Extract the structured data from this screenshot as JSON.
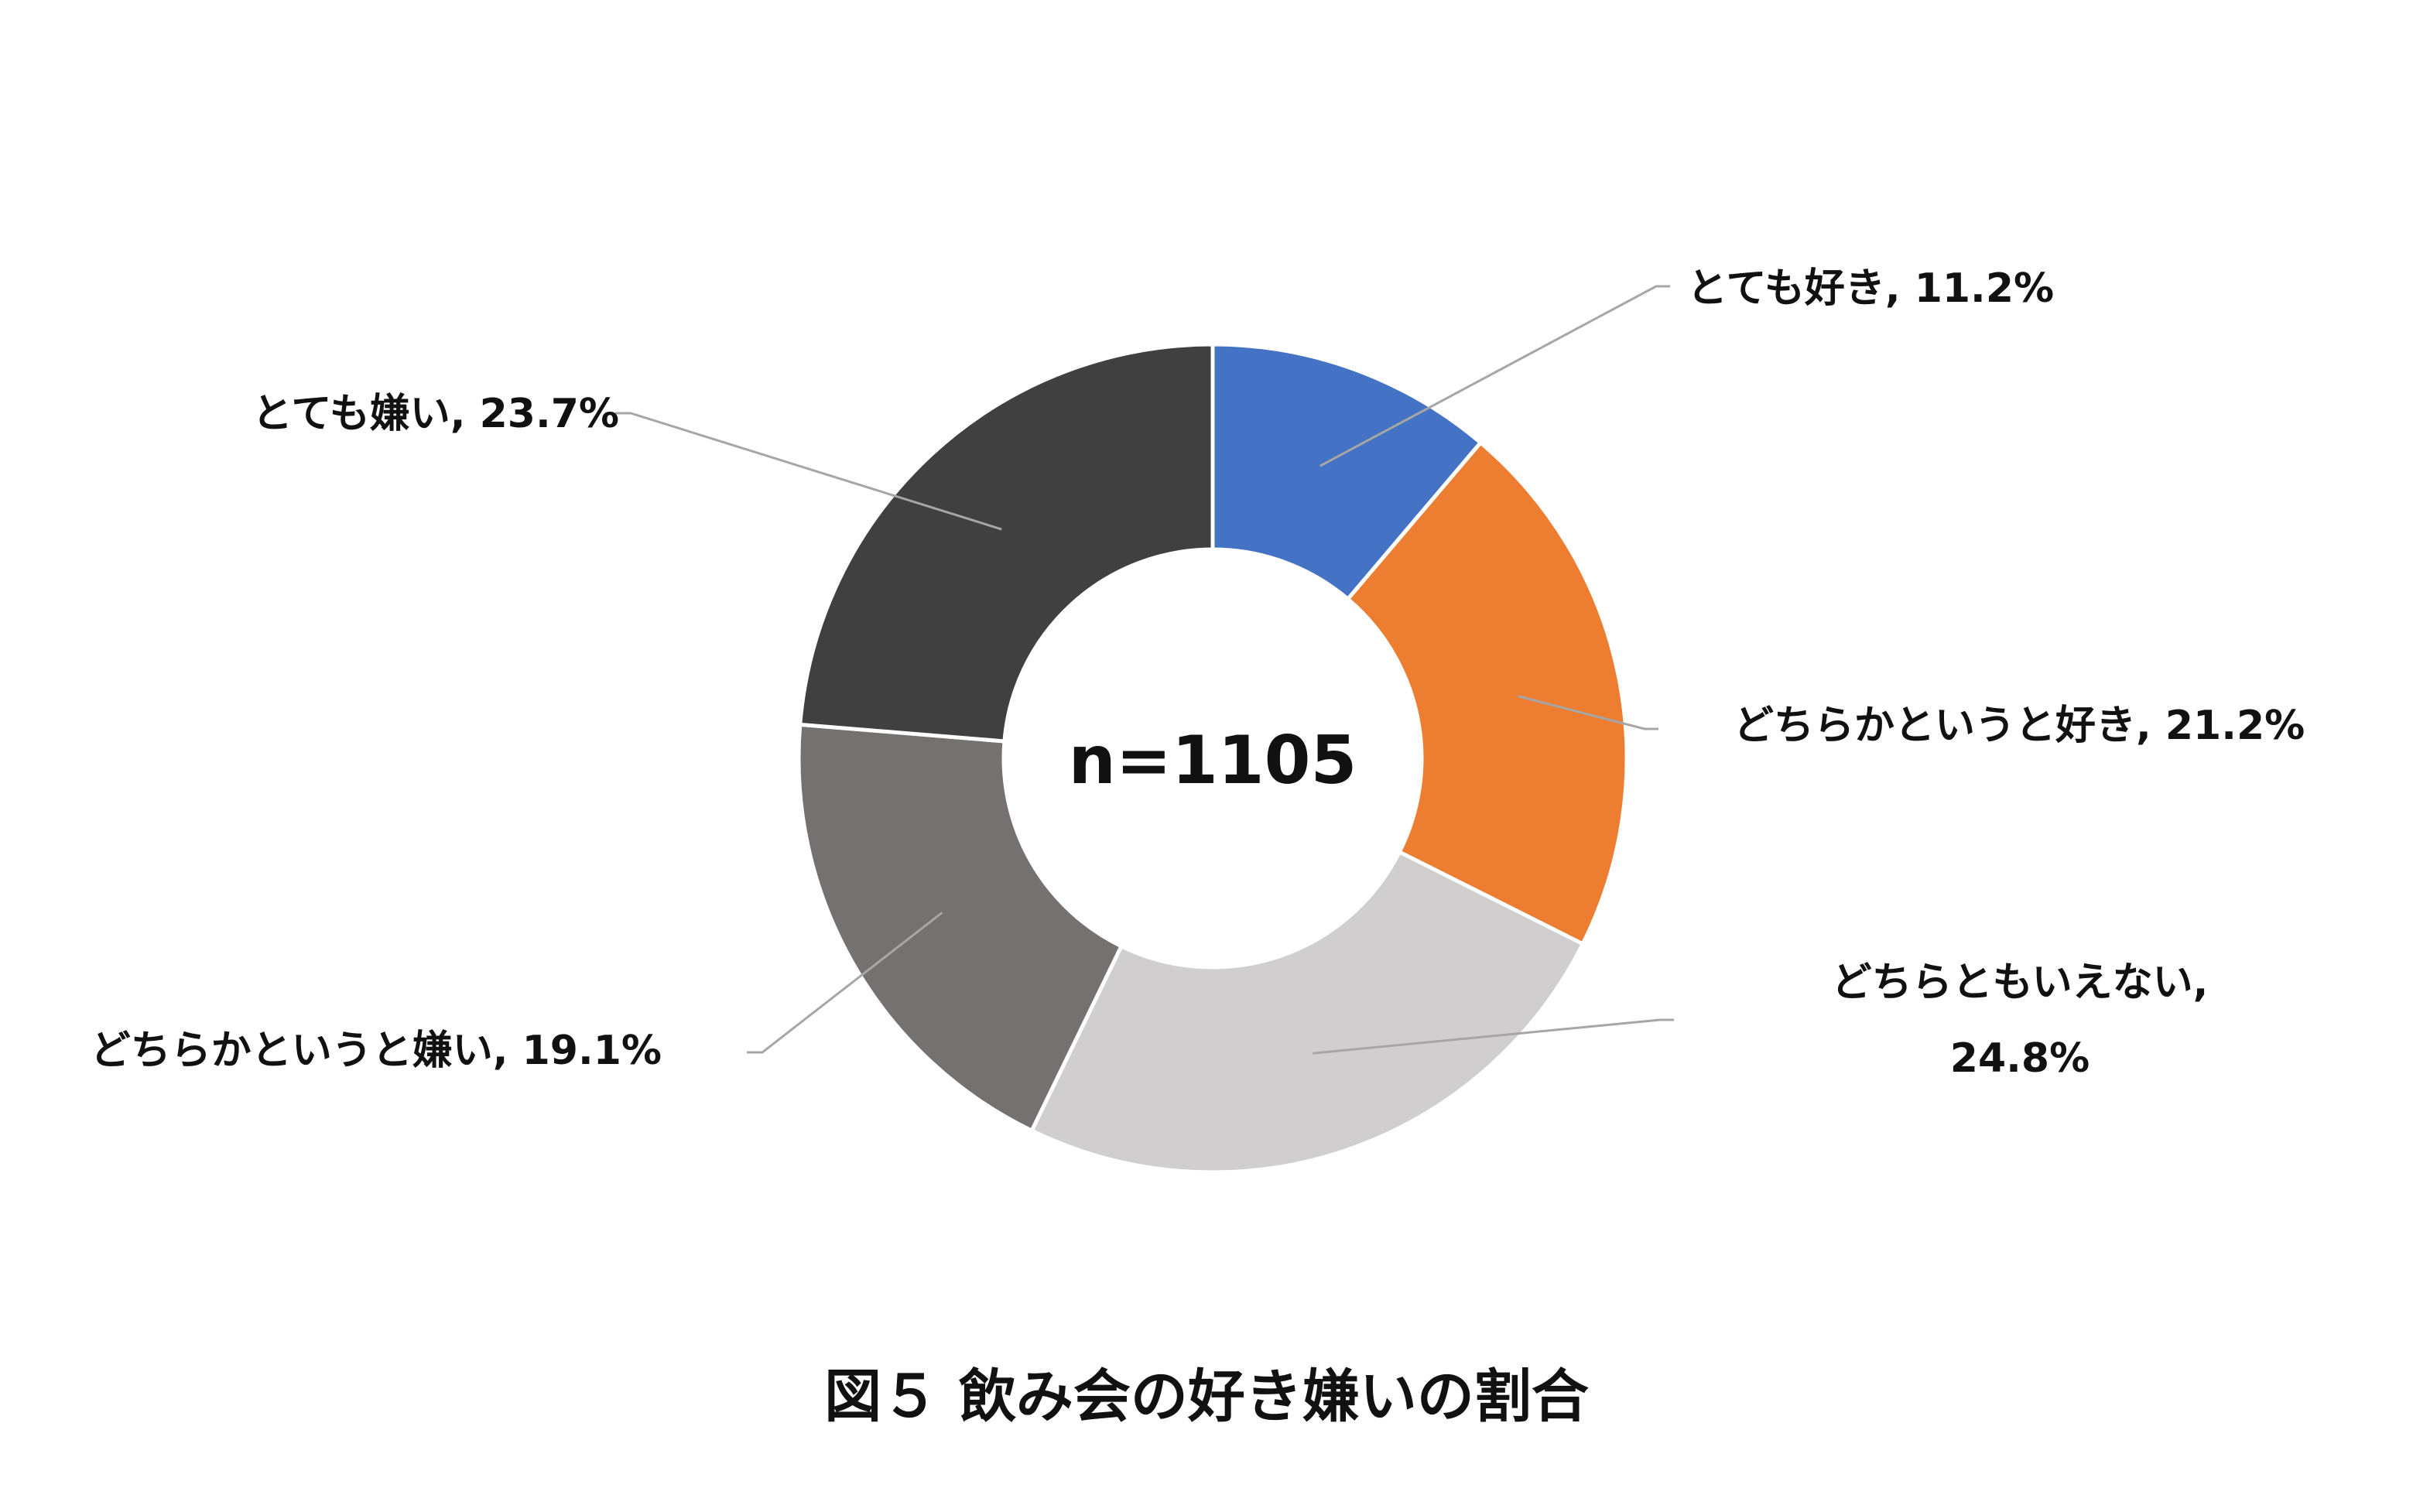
{
  "chart_data": {
    "type": "pie",
    "variant": "donut",
    "center_label": "n=1105",
    "caption": "図５ 飲み会の好き嫌いの割合",
    "slices": [
      {
        "label": "とても好き",
        "value": 11.2,
        "value_text": "11.2%",
        "color": "#4472c4"
      },
      {
        "label": "どちらかというと好き",
        "value": 21.2,
        "value_text": "21.2%",
        "color": "#ed7d31"
      },
      {
        "label": "どちらともいえない",
        "value": 24.8,
        "value_text": "24.8%",
        "color": "#d0cece"
      },
      {
        "label": "どちらかというと嫌い",
        "value": 19.1,
        "value_text": "19.1%",
        "color": "#757171"
      },
      {
        "label": "とても嫌い",
        "value": 23.7,
        "value_text": "23.7%",
        "color": "#404040"
      }
    ],
    "legend": "none",
    "start_angle": "12 o'clock, clockwise"
  }
}
